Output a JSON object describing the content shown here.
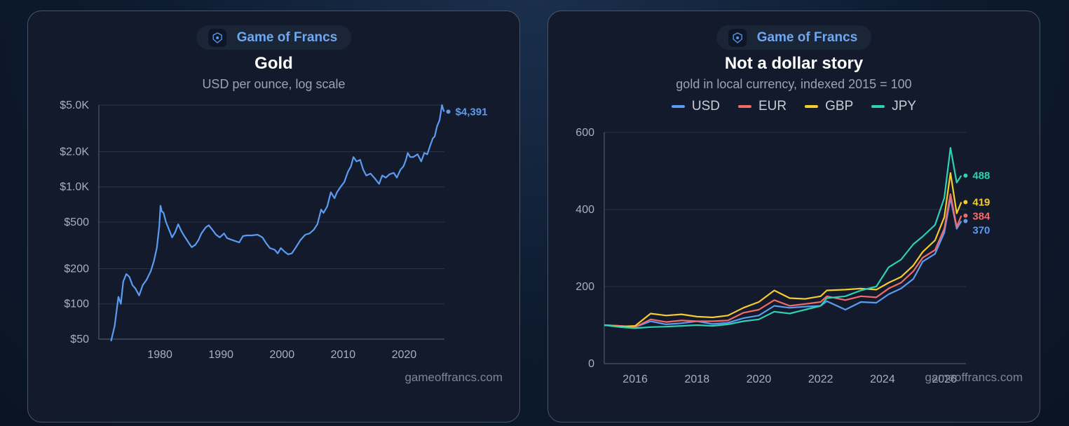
{
  "brand": "Game of Francs",
  "watermark": "gameoffrancs.com",
  "colors": {
    "usd": "#5b9bf2",
    "eur": "#f26b6b",
    "gbp": "#f5cc2e",
    "jpy": "#2ed1b4"
  },
  "chart_data": [
    {
      "type": "line",
      "title": "Gold",
      "subtitle": "USD per ounce, log scale",
      "yscale": "log",
      "ylim": [
        50,
        5000
      ],
      "yticks": [
        {
          "value": 5000,
          "label": "$5.0K"
        },
        {
          "value": 2000,
          "label": "$2.0K"
        },
        {
          "value": 1000,
          "label": "$1.0K"
        },
        {
          "value": 500,
          "label": "$500"
        },
        {
          "value": 200,
          "label": "$200"
        },
        {
          "value": 100,
          "label": "$100"
        },
        {
          "value": 50,
          "label": "$50"
        }
      ],
      "xlim": [
        1970,
        2026.6
      ],
      "xticks": [
        1980,
        1990,
        2000,
        2010,
        2020
      ],
      "grid": true,
      "last_label": "$4,391",
      "series": [
        {
          "color": "#5b9bf2",
          "points": [
            [
              1972.0,
              48
            ],
            [
              1972.6,
              65
            ],
            [
              1973.2,
              115
            ],
            [
              1973.6,
              100
            ],
            [
              1974.0,
              155
            ],
            [
              1974.5,
              180
            ],
            [
              1975.0,
              170
            ],
            [
              1975.5,
              145
            ],
            [
              1976.0,
              135
            ],
            [
              1976.6,
              118
            ],
            [
              1977.2,
              145
            ],
            [
              1977.8,
              160
            ],
            [
              1978.5,
              190
            ],
            [
              1979.0,
              230
            ],
            [
              1979.5,
              300
            ],
            [
              1979.9,
              460
            ],
            [
              1980.1,
              690
            ],
            [
              1980.3,
              620
            ],
            [
              1980.6,
              600
            ],
            [
              1981.0,
              500
            ],
            [
              1981.5,
              430
            ],
            [
              1982.0,
              370
            ],
            [
              1982.5,
              410
            ],
            [
              1983.0,
              480
            ],
            [
              1983.5,
              420
            ],
            [
              1984.0,
              380
            ],
            [
              1984.6,
              340
            ],
            [
              1985.2,
              305
            ],
            [
              1985.8,
              320
            ],
            [
              1986.3,
              350
            ],
            [
              1986.8,
              400
            ],
            [
              1987.5,
              450
            ],
            [
              1988.0,
              470
            ],
            [
              1988.6,
              430
            ],
            [
              1989.2,
              390
            ],
            [
              1989.8,
              370
            ],
            [
              1990.5,
              400
            ],
            [
              1991.0,
              365
            ],
            [
              1991.6,
              355
            ],
            [
              1992.3,
              345
            ],
            [
              1993.0,
              335
            ],
            [
              1993.6,
              380
            ],
            [
              1994.2,
              385
            ],
            [
              1995.0,
              385
            ],
            [
              1996.0,
              390
            ],
            [
              1996.8,
              370
            ],
            [
              1997.4,
              330
            ],
            [
              1998.0,
              300
            ],
            [
              1998.8,
              290
            ],
            [
              1999.3,
              270
            ],
            [
              1999.8,
              300
            ],
            [
              2000.4,
              280
            ],
            [
              2001.0,
              265
            ],
            [
              2001.6,
              270
            ],
            [
              2002.2,
              300
            ],
            [
              2003.0,
              350
            ],
            [
              2003.8,
              390
            ],
            [
              2004.5,
              400
            ],
            [
              2005.2,
              430
            ],
            [
              2005.8,
              480
            ],
            [
              2006.4,
              640
            ],
            [
              2006.8,
              600
            ],
            [
              2007.4,
              680
            ],
            [
              2008.0,
              900
            ],
            [
              2008.6,
              800
            ],
            [
              2009.0,
              900
            ],
            [
              2009.6,
              1000
            ],
            [
              2010.2,
              1100
            ],
            [
              2010.8,
              1350
            ],
            [
              2011.3,
              1500
            ],
            [
              2011.7,
              1800
            ],
            [
              2012.2,
              1650
            ],
            [
              2012.8,
              1700
            ],
            [
              2013.3,
              1400
            ],
            [
              2013.8,
              1250
            ],
            [
              2014.5,
              1300
            ],
            [
              2015.2,
              1180
            ],
            [
              2015.9,
              1060
            ],
            [
              2016.4,
              1250
            ],
            [
              2017.0,
              1200
            ],
            [
              2017.6,
              1280
            ],
            [
              2018.3,
              1320
            ],
            [
              2018.8,
              1200
            ],
            [
              2019.4,
              1400
            ],
            [
              2019.9,
              1500
            ],
            [
              2020.3,
              1700
            ],
            [
              2020.6,
              1950
            ],
            [
              2021.0,
              1800
            ],
            [
              2021.5,
              1800
            ],
            [
              2022.2,
              1900
            ],
            [
              2022.8,
              1650
            ],
            [
              2023.3,
              1950
            ],
            [
              2023.8,
              1900
            ],
            [
              2024.2,
              2200
            ],
            [
              2024.7,
              2600
            ],
            [
              2025.0,
              2700
            ],
            [
              2025.4,
              3300
            ],
            [
              2025.8,
              3700
            ],
            [
              2026.0,
              4300
            ],
            [
              2026.2,
              5000
            ],
            [
              2026.4,
              4600
            ],
            [
              2026.55,
              4391
            ]
          ]
        }
      ]
    },
    {
      "type": "line",
      "title": "Not a dollar story",
      "subtitle": "gold in local currency, indexed 2015 = 100",
      "ylim": [
        0,
        600
      ],
      "yticks": [
        {
          "value": 600,
          "label": "600"
        },
        {
          "value": 400,
          "label": "400"
        },
        {
          "value": 200,
          "label": "200"
        },
        {
          "value": 0,
          "label": "0"
        }
      ],
      "xlim": [
        2015,
        2026.7
      ],
      "xticks": [
        2016,
        2018,
        2020,
        2022,
        2024,
        2026
      ],
      "grid": true,
      "legend_position": "top",
      "legend": [
        "USD",
        "EUR",
        "GBP",
        "JPY"
      ],
      "series": [
        {
          "name": "USD",
          "color": "#5b9bf2",
          "last_label": "370",
          "points": [
            [
              2015.0,
              100
            ],
            [
              2015.5,
              98
            ],
            [
              2016.0,
              95
            ],
            [
              2016.5,
              110
            ],
            [
              2017.0,
              102
            ],
            [
              2017.5,
              105
            ],
            [
              2018.0,
              110
            ],
            [
              2018.5,
              103
            ],
            [
              2019.0,
              106
            ],
            [
              2019.5,
              118
            ],
            [
              2020.0,
              125
            ],
            [
              2020.5,
              150
            ],
            [
              2021.0,
              145
            ],
            [
              2021.5,
              148
            ],
            [
              2022.0,
              150
            ],
            [
              2022.2,
              162
            ],
            [
              2022.8,
              140
            ],
            [
              2023.3,
              160
            ],
            [
              2023.8,
              158
            ],
            [
              2024.2,
              180
            ],
            [
              2024.6,
              195
            ],
            [
              2025.0,
              220
            ],
            [
              2025.3,
              265
            ],
            [
              2025.7,
              285
            ],
            [
              2026.0,
              340
            ],
            [
              2026.2,
              430
            ],
            [
              2026.4,
              350
            ],
            [
              2026.55,
              370
            ]
          ]
        },
        {
          "name": "EUR",
          "color": "#f26b6b",
          "last_label": "384",
          "points": [
            [
              2015.0,
              100
            ],
            [
              2015.5,
              98
            ],
            [
              2016.0,
              95
            ],
            [
              2016.5,
              115
            ],
            [
              2017.0,
              108
            ],
            [
              2017.5,
              112
            ],
            [
              2018.0,
              110
            ],
            [
              2018.5,
              110
            ],
            [
              2019.0,
              112
            ],
            [
              2019.5,
              132
            ],
            [
              2020.0,
              140
            ],
            [
              2020.5,
              165
            ],
            [
              2021.0,
              150
            ],
            [
              2021.5,
              155
            ],
            [
              2022.0,
              160
            ],
            [
              2022.2,
              175
            ],
            [
              2022.8,
              165
            ],
            [
              2023.3,
              175
            ],
            [
              2023.8,
              172
            ],
            [
              2024.2,
              195
            ],
            [
              2024.6,
              210
            ],
            [
              2025.0,
              240
            ],
            [
              2025.3,
              275
            ],
            [
              2025.7,
              295
            ],
            [
              2026.0,
              350
            ],
            [
              2026.2,
              440
            ],
            [
              2026.4,
              355
            ],
            [
              2026.55,
              384
            ]
          ]
        },
        {
          "name": "GBP",
          "color": "#f5cc2e",
          "last_label": "419",
          "points": [
            [
              2015.0,
              100
            ],
            [
              2015.5,
              96
            ],
            [
              2016.0,
              98
            ],
            [
              2016.5,
              130
            ],
            [
              2017.0,
              125
            ],
            [
              2017.5,
              128
            ],
            [
              2018.0,
              122
            ],
            [
              2018.5,
              120
            ],
            [
              2019.0,
              125
            ],
            [
              2019.5,
              145
            ],
            [
              2020.0,
              160
            ],
            [
              2020.5,
              190
            ],
            [
              2021.0,
              170
            ],
            [
              2021.5,
              168
            ],
            [
              2022.0,
              175
            ],
            [
              2022.2,
              190
            ],
            [
              2022.8,
              192
            ],
            [
              2023.3,
              195
            ],
            [
              2023.8,
              192
            ],
            [
              2024.2,
              210
            ],
            [
              2024.6,
              225
            ],
            [
              2025.0,
              255
            ],
            [
              2025.3,
              290
            ],
            [
              2025.7,
              320
            ],
            [
              2026.0,
              380
            ],
            [
              2026.2,
              495
            ],
            [
              2026.4,
              390
            ],
            [
              2026.55,
              419
            ]
          ]
        },
        {
          "name": "JPY",
          "color": "#2ed1b4",
          "last_label": "488",
          "points": [
            [
              2015.0,
              100
            ],
            [
              2015.5,
              95
            ],
            [
              2016.0,
              92
            ],
            [
              2016.5,
              95
            ],
            [
              2017.0,
              96
            ],
            [
              2017.5,
              98
            ],
            [
              2018.0,
              100
            ],
            [
              2018.5,
              98
            ],
            [
              2019.0,
              102
            ],
            [
              2019.5,
              110
            ],
            [
              2020.0,
              115
            ],
            [
              2020.5,
              135
            ],
            [
              2021.0,
              130
            ],
            [
              2021.5,
              140
            ],
            [
              2022.0,
              150
            ],
            [
              2022.2,
              170
            ],
            [
              2022.8,
              175
            ],
            [
              2023.3,
              190
            ],
            [
              2023.8,
              200
            ],
            [
              2024.2,
              250
            ],
            [
              2024.6,
              270
            ],
            [
              2025.0,
              310
            ],
            [
              2025.3,
              330
            ],
            [
              2025.7,
              360
            ],
            [
              2026.0,
              430
            ],
            [
              2026.2,
              560
            ],
            [
              2026.4,
              470
            ],
            [
              2026.55,
              488
            ]
          ]
        }
      ]
    }
  ]
}
